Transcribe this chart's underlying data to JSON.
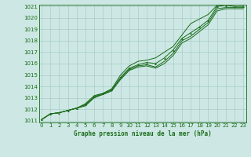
{
  "title": "Graphe pression niveau de la mer (hPa)",
  "bg_color": "#cde8e4",
  "grid_color": "#a8ccc8",
  "line_color": "#1a6b1a",
  "spine_color": "#2d7a2d",
  "xlim": [
    0,
    23
  ],
  "ylim": [
    1011,
    1021
  ],
  "yticks": [
    1011,
    1012,
    1013,
    1014,
    1015,
    1016,
    1017,
    1018,
    1019,
    1020,
    1021
  ],
  "xticks": [
    0,
    1,
    2,
    3,
    4,
    5,
    6,
    7,
    8,
    9,
    10,
    11,
    12,
    13,
    14,
    15,
    16,
    17,
    18,
    19,
    20,
    21,
    22,
    23
  ],
  "hours": [
    0,
    1,
    2,
    3,
    4,
    5,
    6,
    7,
    8,
    9,
    10,
    11,
    12,
    13,
    14,
    15,
    16,
    17,
    18,
    19,
    20,
    21,
    22,
    23
  ],
  "pressure_main": [
    1011.1,
    1011.6,
    1011.7,
    1011.9,
    1012.1,
    1012.4,
    1013.1,
    1013.4,
    1013.7,
    1014.8,
    1015.6,
    1015.9,
    1016.1,
    1016.0,
    1016.5,
    1017.2,
    1018.2,
    1018.7,
    1019.2,
    1019.8,
    1021.0,
    1021.1,
    1021.0,
    1021.0
  ],
  "pressure_upper": [
    1011.1,
    1011.6,
    1011.7,
    1011.9,
    1012.1,
    1012.5,
    1013.2,
    1013.4,
    1013.8,
    1015.0,
    1015.8,
    1016.2,
    1016.3,
    1016.5,
    1017.0,
    1017.5,
    1018.5,
    1019.5,
    1019.9,
    1020.3,
    1021.1,
    1021.2,
    1021.2,
    1021.1
  ],
  "pressure_lower": [
    1011.1,
    1011.6,
    1011.7,
    1011.9,
    1012.1,
    1012.3,
    1013.0,
    1013.3,
    1013.6,
    1014.6,
    1015.4,
    1015.7,
    1015.8,
    1015.6,
    1016.0,
    1016.7,
    1017.8,
    1018.2,
    1018.8,
    1019.4,
    1020.6,
    1020.8,
    1020.8,
    1020.8
  ],
  "pressure_mid": [
    1011.1,
    1011.6,
    1011.7,
    1011.9,
    1012.1,
    1012.4,
    1013.1,
    1013.3,
    1013.7,
    1014.7,
    1015.5,
    1015.8,
    1015.9,
    1015.7,
    1016.2,
    1016.9,
    1018.0,
    1018.4,
    1019.0,
    1019.6,
    1020.8,
    1020.9,
    1020.9,
    1020.9
  ]
}
